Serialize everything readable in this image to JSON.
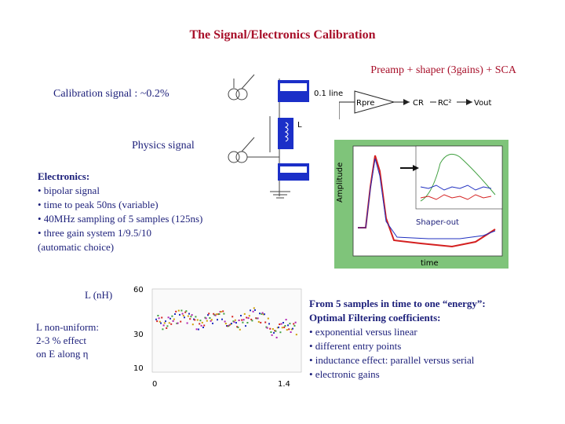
{
  "title": "The Signal/Electronics Calibration",
  "preamp_label": "Preamp + shaper (3gains) + SCA",
  "calibration_label": "Calibration signal : ~0.2%",
  "physics_label": "Physics signal",
  "electronics": {
    "heading": "Electronics:",
    "items": [
      "• bipolar signal",
      "• time to peak 50ns (variable)",
      "• 40MHz sampling of 5 samples (125ns)",
      "• three gain system 1/9.5/10",
      "(automatic choice)"
    ]
  },
  "inductance": {
    "label": "L (nH)",
    "note_lines": [
      "L non-uniform:",
      "2-3 % effect",
      "on E along η"
    ],
    "y_ticks": [
      "60",
      "30",
      "10"
    ],
    "x_ticks": [
      "0",
      "1.4"
    ]
  },
  "filtering": {
    "heading_1": "From 5 samples in time to one “energy”:",
    "heading_2": "Optimal Filtering coefficients:",
    "items": [
      "• exponential versus linear",
      "• different entry points",
      "• inductance effect: parallel versus serial",
      "• electronic gains"
    ]
  },
  "circuit": {
    "block_left": "Rpre",
    "block_cr": "CR",
    "block_rc": "RC²",
    "output": "Vout",
    "line": "0.1 line",
    "inductor": "L"
  },
  "pulse_plot": {
    "annotation": "Shaper-out",
    "ylabel": "Amplitude",
    "xlabel": "time",
    "colors": {
      "pulse_red": "#d42020",
      "pulse_blue": "#2030c0",
      "pulse_green": "#40a040",
      "panel": "#7fc47a"
    }
  },
  "colors": {
    "title_red": "#a8102a",
    "text_navy": "#1c1f7a"
  }
}
